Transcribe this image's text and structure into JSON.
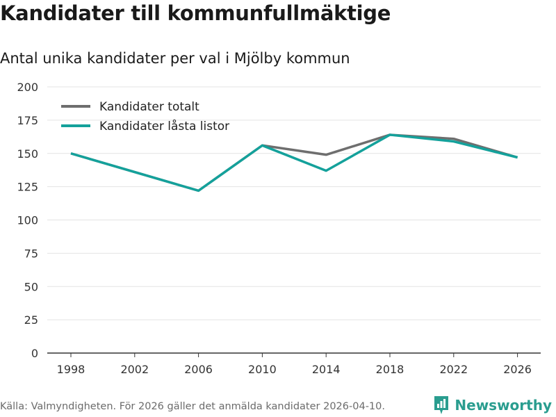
{
  "title": "Kandidater till kommunfullmäktige",
  "subtitle": "Antal unika kandidater per val i Mjölby kommun",
  "source": "Källa: Valmyndigheten. För 2026 gäller det anmälda kandidater 2026-04-10.",
  "brand": {
    "name": "Newsworthy",
    "icon": "newsworthy-logo-icon",
    "color": "#2a9d8f"
  },
  "chart_data": {
    "type": "line",
    "x": [
      "1998",
      "2002",
      "2006",
      "2010",
      "2014",
      "2018",
      "2022",
      "2026"
    ],
    "ylim": [
      0,
      200
    ],
    "yticks": [
      "0",
      "25",
      "50",
      "75",
      "100",
      "125",
      "150",
      "175",
      "200"
    ],
    "grid": true,
    "legend_position": "top-left",
    "series": [
      {
        "name": "Kandidater totalt",
        "color": "#6e6e6e",
        "values": [
          150,
          136,
          122,
          156,
          149,
          164,
          161,
          147
        ]
      },
      {
        "name": "Kandidater låsta listor",
        "color": "#14a19b",
        "values": [
          150,
          136,
          122,
          156,
          137,
          164,
          159,
          147
        ]
      }
    ]
  }
}
